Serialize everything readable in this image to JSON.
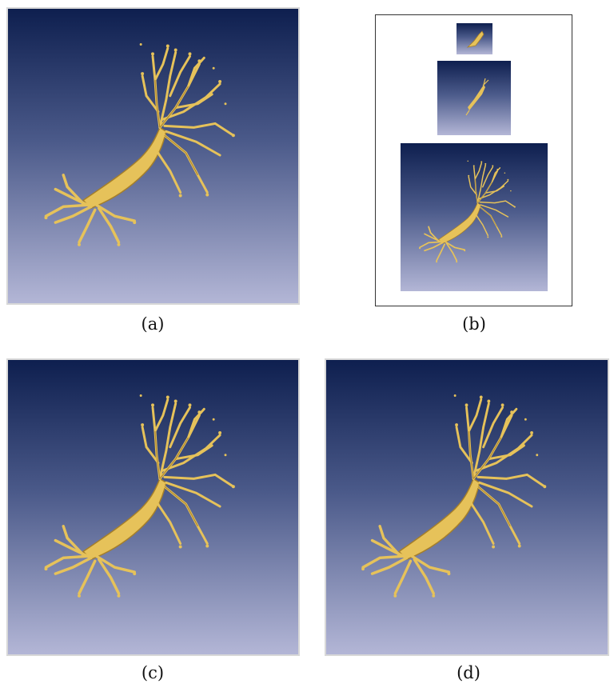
{
  "figure": {
    "panels": [
      {
        "id": "a",
        "caption": "(a)"
      },
      {
        "id": "b",
        "caption": "(b)"
      },
      {
        "id": "c",
        "caption": "(c)"
      },
      {
        "id": "d",
        "caption": "(d)"
      }
    ]
  },
  "colors": {
    "background_top": "#0e1f4f",
    "background_bottom": "#b3b6d6",
    "neuron": "#e6c25a",
    "neuron_shadow": "#a57f2a"
  }
}
